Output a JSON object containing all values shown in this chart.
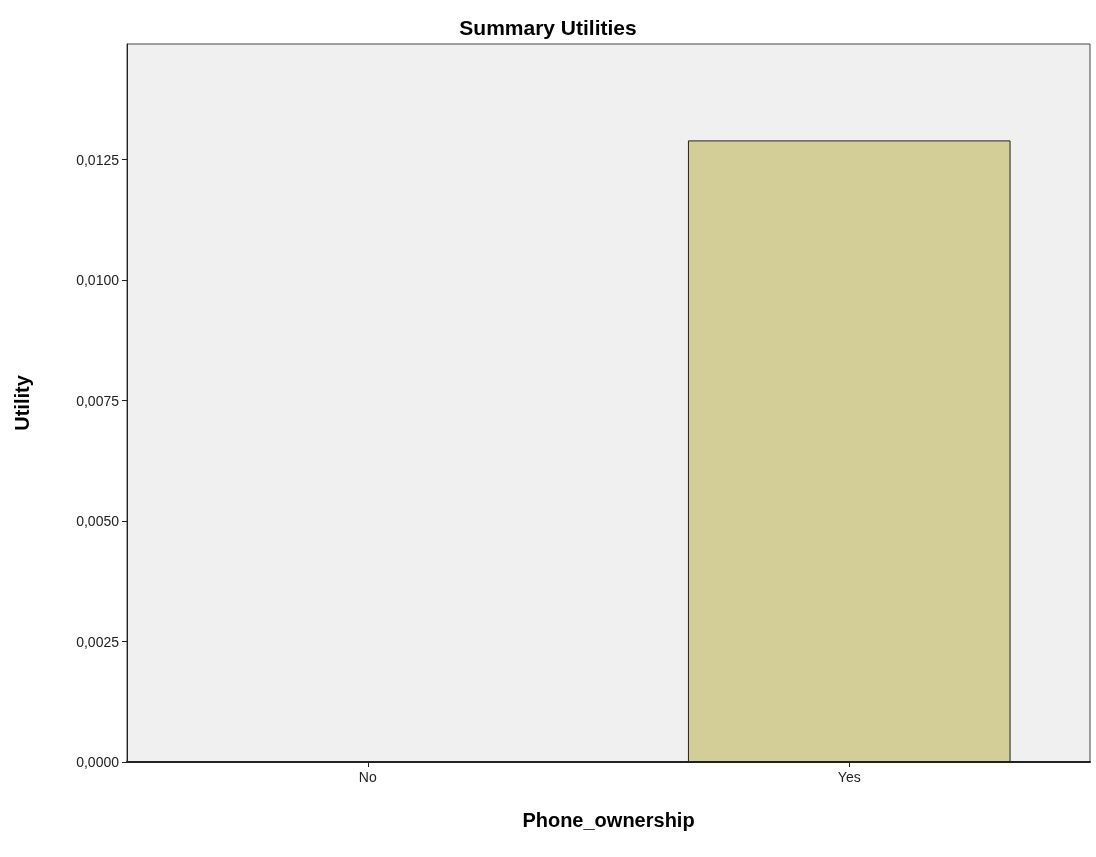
{
  "chart_data": {
    "type": "bar",
    "title": "Summary Utilities",
    "xlabel": "Phone_ownership",
    "ylabel": "Utility",
    "categories": [
      "No",
      "Yes"
    ],
    "values": [
      0,
      0.0129
    ],
    "color": "#d3ce97",
    "ylim": [
      0,
      0.0149
    ],
    "yticks": [
      {
        "value": 0,
        "label": "0,0000"
      },
      {
        "value": 0.0025,
        "label": "0,0025"
      },
      {
        "value": 0.005,
        "label": "0,0050"
      },
      {
        "value": 0.0075,
        "label": "0,0075"
      },
      {
        "value": 0.01,
        "label": "0,0100"
      },
      {
        "value": 0.0125,
        "label": "0,0125"
      }
    ],
    "grid": false
  }
}
